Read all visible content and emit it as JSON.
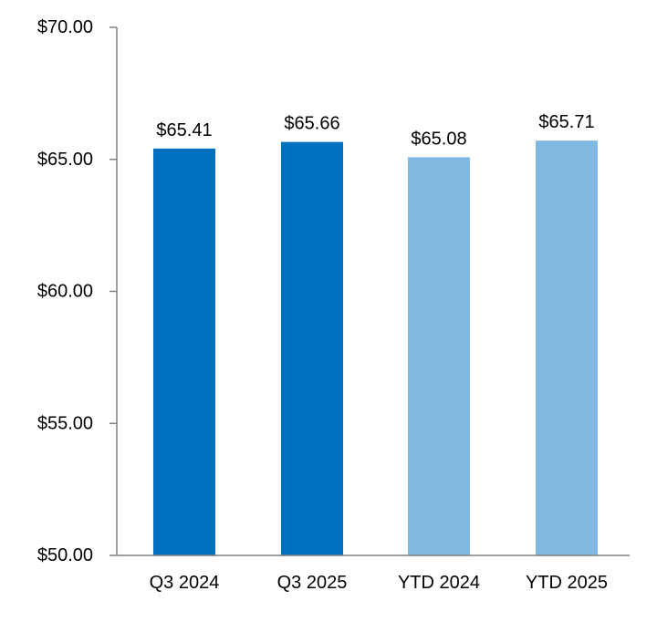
{
  "chart_data": {
    "type": "bar",
    "title": "",
    "xlabel": "",
    "ylabel": "",
    "categories": [
      "Q3 2024",
      "Q3 2025",
      "YTD 2024",
      "YTD 2025"
    ],
    "values": [
      65.41,
      65.66,
      65.08,
      65.71
    ],
    "data_labels": [
      "$65.41",
      "$65.66",
      "$65.08",
      "$65.71"
    ],
    "bar_colors": [
      "#0070c0",
      "#0070c0",
      "#7fb8e0",
      "#7fb8e0"
    ],
    "ylim": [
      50,
      70
    ],
    "y_ticks": [
      50,
      55,
      60,
      65,
      70
    ],
    "y_tick_labels": [
      "$50.00",
      "$55.00",
      "$60.00",
      "$65.00",
      "$70.00"
    ],
    "grid": false,
    "legend": "none",
    "axis_color": "#808080"
  }
}
